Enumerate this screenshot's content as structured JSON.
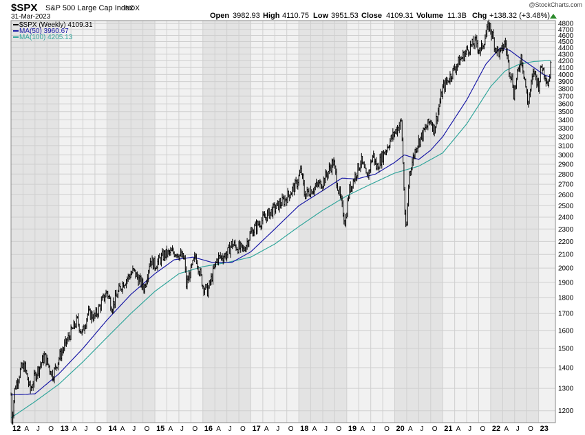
{
  "header": {
    "symbol": "$SPX",
    "name": "S&P 500 Large Cap Index",
    "exchange": "INDX",
    "date": "31-Mar-2023",
    "open_label": "Open",
    "open": "3982.93",
    "high_label": "High",
    "high": "4110.75",
    "low_label": "Low",
    "low": "3951.53",
    "close_label": "Close",
    "close": "4109.31",
    "volume_label": "Volume",
    "volume": "11.3B",
    "chg_label": "Chg",
    "chg": "+138.32 (+3.48%)",
    "watermark": "@StockCharts.com"
  },
  "legend": [
    {
      "text": "$SPX (Weekly) 4109.31",
      "color": "#000000"
    },
    {
      "text": "MA(50) 3960.67",
      "color": "#1a1aa6"
    },
    {
      "text": "MA(100) 4205.13",
      "color": "#33a69c"
    }
  ],
  "colors": {
    "price": "#000000",
    "ma50": "#1a1aa6",
    "ma100": "#33a69c",
    "up_arrow": "#2a8a2a",
    "grid": "#cfcfcf",
    "band_dark": "#e3e3e3",
    "band_light": "#f1f1f1"
  },
  "chart_data": {
    "type": "line",
    "scale": "log",
    "ylim": [
      1150,
      4850
    ],
    "y_ticks": [
      1200,
      1300,
      1400,
      1500,
      1600,
      1700,
      1800,
      1900,
      2000,
      2100,
      2200,
      2300,
      2400,
      2500,
      2600,
      2700,
      2800,
      2900,
      3000,
      3100,
      3200,
      3300,
      3400,
      3500,
      3600,
      3700,
      3800,
      3900,
      4000,
      4100,
      4200,
      4300,
      4400,
      4500,
      4600,
      4700,
      4800
    ],
    "xlim": [
      2012.0,
      2023.35
    ],
    "x_tick_labels": [
      {
        "t": 2012.0,
        "label": "12"
      },
      {
        "t": 2012.25,
        "label": "A"
      },
      {
        "t": 2012.5,
        "label": "J"
      },
      {
        "t": 2012.75,
        "label": "O"
      },
      {
        "t": 2013.0,
        "label": "13"
      },
      {
        "t": 2013.25,
        "label": "A"
      },
      {
        "t": 2013.5,
        "label": "J"
      },
      {
        "t": 2013.75,
        "label": "O"
      },
      {
        "t": 2014.0,
        "label": "14"
      },
      {
        "t": 2014.25,
        "label": "A"
      },
      {
        "t": 2014.5,
        "label": "J"
      },
      {
        "t": 2014.75,
        "label": "O"
      },
      {
        "t": 2015.0,
        "label": "15"
      },
      {
        "t": 2015.25,
        "label": "A"
      },
      {
        "t": 2015.5,
        "label": "J"
      },
      {
        "t": 2015.75,
        "label": "O"
      },
      {
        "t": 2016.0,
        "label": "16"
      },
      {
        "t": 2016.25,
        "label": "A"
      },
      {
        "t": 2016.5,
        "label": "J"
      },
      {
        "t": 2016.75,
        "label": "O"
      },
      {
        "t": 2017.0,
        "label": "17"
      },
      {
        "t": 2017.25,
        "label": "A"
      },
      {
        "t": 2017.5,
        "label": "J"
      },
      {
        "t": 2017.75,
        "label": "O"
      },
      {
        "t": 2018.0,
        "label": "18"
      },
      {
        "t": 2018.25,
        "label": "A"
      },
      {
        "t": 2018.5,
        "label": "J"
      },
      {
        "t": 2018.75,
        "label": "O"
      },
      {
        "t": 2019.0,
        "label": "19"
      },
      {
        "t": 2019.25,
        "label": "A"
      },
      {
        "t": 2019.5,
        "label": "J"
      },
      {
        "t": 2019.75,
        "label": "O"
      },
      {
        "t": 2020.0,
        "label": "20"
      },
      {
        "t": 2020.25,
        "label": "A"
      },
      {
        "t": 2020.5,
        "label": "J"
      },
      {
        "t": 2020.75,
        "label": "O"
      },
      {
        "t": 2021.0,
        "label": "21"
      },
      {
        "t": 2021.25,
        "label": "A"
      },
      {
        "t": 2021.5,
        "label": "J"
      },
      {
        "t": 2021.75,
        "label": "O"
      },
      {
        "t": 2022.0,
        "label": "22"
      },
      {
        "t": 2022.25,
        "label": "A"
      },
      {
        "t": 2022.5,
        "label": "J"
      },
      {
        "t": 2022.75,
        "label": "O"
      },
      {
        "t": 2023.0,
        "label": "23"
      }
    ],
    "price_anchors": [
      [
        2012.0,
        1270
      ],
      [
        2012.02,
        1160
      ],
      [
        2012.08,
        1300
      ],
      [
        2012.2,
        1390
      ],
      [
        2012.28,
        1410
      ],
      [
        2012.4,
        1290
      ],
      [
        2012.5,
        1360
      ],
      [
        2012.7,
        1460
      ],
      [
        2012.87,
        1360
      ],
      [
        2013.0,
        1450
      ],
      [
        2013.2,
        1560
      ],
      [
        2013.38,
        1660
      ],
      [
        2013.48,
        1580
      ],
      [
        2013.6,
        1700
      ],
      [
        2013.75,
        1680
      ],
      [
        2014.0,
        1840
      ],
      [
        2014.1,
        1740
      ],
      [
        2014.3,
        1880
      ],
      [
        2014.55,
        1980
      ],
      [
        2014.78,
        1860
      ],
      [
        2014.9,
        2060
      ],
      [
        2015.0,
        2020
      ],
      [
        2015.2,
        2100
      ],
      [
        2015.45,
        2120
      ],
      [
        2015.62,
        2060
      ],
      [
        2015.65,
        1880
      ],
      [
        2015.85,
        2090
      ],
      [
        2016.0,
        1880
      ],
      [
        2016.1,
        1840
      ],
      [
        2016.3,
        2070
      ],
      [
        2016.5,
        2100
      ],
      [
        2016.6,
        2180
      ],
      [
        2016.85,
        2130
      ],
      [
        2017.0,
        2270
      ],
      [
        2017.2,
        2360
      ],
      [
        2017.4,
        2440
      ],
      [
        2017.7,
        2550
      ],
      [
        2017.95,
        2700
      ],
      [
        2018.05,
        2840
      ],
      [
        2018.12,
        2600
      ],
      [
        2018.3,
        2660
      ],
      [
        2018.5,
        2720
      ],
      [
        2018.72,
        2930
      ],
      [
        2018.82,
        2660
      ],
      [
        2018.97,
        2350
      ],
      [
        2019.05,
        2640
      ],
      [
        2019.3,
        2940
      ],
      [
        2019.42,
        2750
      ],
      [
        2019.55,
        3010
      ],
      [
        2019.62,
        2860
      ],
      [
        2019.9,
        3150
      ],
      [
        2020.05,
        3300
      ],
      [
        2020.14,
        3380
      ],
      [
        2020.22,
        2350
      ],
      [
        2020.24,
        2240
      ],
      [
        2020.3,
        2800
      ],
      [
        2020.45,
        3100
      ],
      [
        2020.65,
        3300
      ],
      [
        2020.75,
        3400
      ],
      [
        2020.82,
        3280
      ],
      [
        2021.0,
        3800
      ],
      [
        2021.3,
        4150
      ],
      [
        2021.55,
        4400
      ],
      [
        2021.7,
        4500
      ],
      [
        2021.78,
        4330
      ],
      [
        2021.97,
        4780
      ],
      [
        2022.03,
        4610
      ],
      [
        2022.1,
        4400
      ],
      [
        2022.2,
        4300
      ],
      [
        2022.3,
        4500
      ],
      [
        2022.38,
        4100
      ],
      [
        2022.46,
        3900
      ],
      [
        2022.47,
        3700
      ],
      [
        2022.6,
        4130
      ],
      [
        2022.63,
        4300
      ],
      [
        2022.72,
        3900
      ],
      [
        2022.77,
        3590
      ],
      [
        2022.83,
        3800
      ],
      [
        2022.9,
        4050
      ],
      [
        2023.0,
        3850
      ],
      [
        2023.06,
        4140
      ],
      [
        2023.15,
        3970
      ],
      [
        2023.2,
        3860
      ],
      [
        2023.25,
        4109
      ]
    ],
    "series": [
      {
        "name": "MA(50)",
        "color": "#1a1aa6",
        "anchors": [
          [
            2012.0,
            1270
          ],
          [
            2012.5,
            1275
          ],
          [
            2013.0,
            1370
          ],
          [
            2013.5,
            1500
          ],
          [
            2014.0,
            1660
          ],
          [
            2014.5,
            1820
          ],
          [
            2015.0,
            1960
          ],
          [
            2015.4,
            2060
          ],
          [
            2015.8,
            2080
          ],
          [
            2016.2,
            2040
          ],
          [
            2016.6,
            2040
          ],
          [
            2017.0,
            2120
          ],
          [
            2017.5,
            2300
          ],
          [
            2018.0,
            2500
          ],
          [
            2018.5,
            2640
          ],
          [
            2018.9,
            2760
          ],
          [
            2019.2,
            2750
          ],
          [
            2019.6,
            2800
          ],
          [
            2020.0,
            2920
          ],
          [
            2020.2,
            3000
          ],
          [
            2020.5,
            2950
          ],
          [
            2020.75,
            3050
          ],
          [
            2021.0,
            3200
          ],
          [
            2021.5,
            3650
          ],
          [
            2021.9,
            4150
          ],
          [
            2022.2,
            4400
          ],
          [
            2022.4,
            4360
          ],
          [
            2022.6,
            4250
          ],
          [
            2022.9,
            4100
          ],
          [
            2023.1,
            4000
          ],
          [
            2023.25,
            3960
          ]
        ]
      },
      {
        "name": "MA(100)",
        "color": "#33a69c",
        "anchors": [
          [
            2012.0,
            1170
          ],
          [
            2012.5,
            1240
          ],
          [
            2013.0,
            1320
          ],
          [
            2013.5,
            1430
          ],
          [
            2014.0,
            1560
          ],
          [
            2014.5,
            1700
          ],
          [
            2015.0,
            1840
          ],
          [
            2015.5,
            1960
          ],
          [
            2016.0,
            2010
          ],
          [
            2016.5,
            2040
          ],
          [
            2017.0,
            2080
          ],
          [
            2017.5,
            2180
          ],
          [
            2018.0,
            2320
          ],
          [
            2018.5,
            2460
          ],
          [
            2019.0,
            2590
          ],
          [
            2019.5,
            2700
          ],
          [
            2020.0,
            2810
          ],
          [
            2020.5,
            2880
          ],
          [
            2021.0,
            3020
          ],
          [
            2021.5,
            3350
          ],
          [
            2022.0,
            3830
          ],
          [
            2022.3,
            4050
          ],
          [
            2022.6,
            4150
          ],
          [
            2022.9,
            4190
          ],
          [
            2023.1,
            4200
          ],
          [
            2023.25,
            4205
          ]
        ]
      }
    ]
  }
}
